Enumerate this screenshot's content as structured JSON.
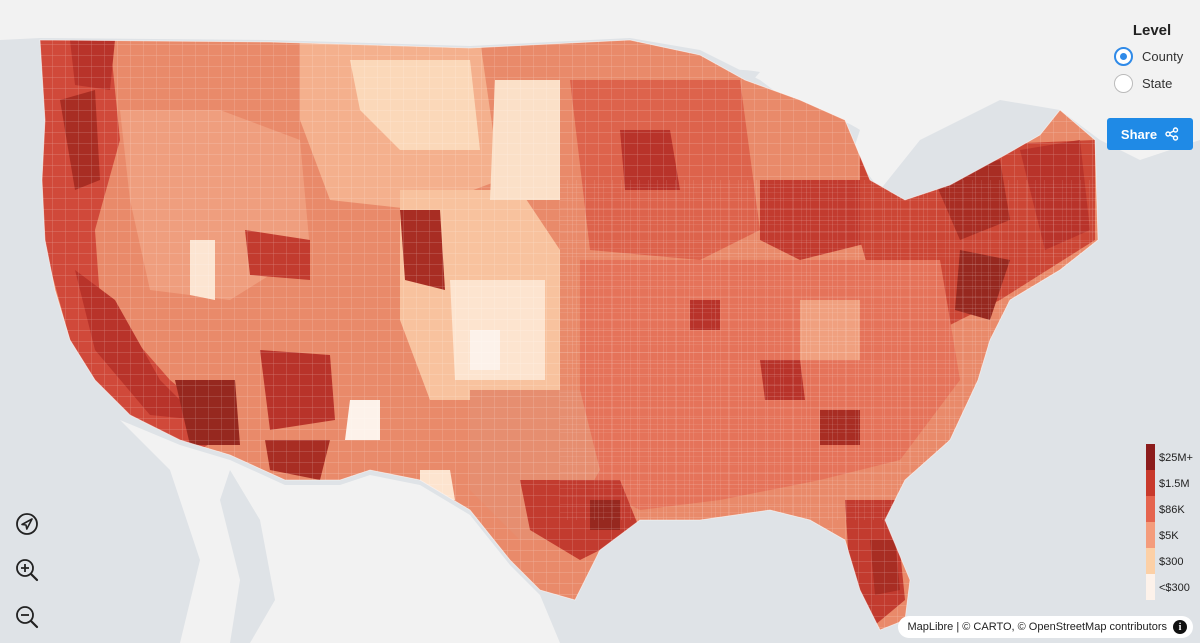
{
  "level_panel": {
    "title": "Level",
    "options": [
      {
        "label": "County",
        "selected": true
      },
      {
        "label": "State",
        "selected": false
      }
    ]
  },
  "share": {
    "label": "Share"
  },
  "legend": {
    "items": [
      {
        "label": "$25M+",
        "color": "#8c1c1c"
      },
      {
        "label": "$1.5M",
        "color": "#c8392b"
      },
      {
        "label": "$86K",
        "color": "#e5644e"
      },
      {
        "label": "$5K",
        "color": "#f49c7c"
      },
      {
        "label": "$300",
        "color": "#fcd0a6"
      },
      {
        "label": "<$300",
        "color": "#fdf2ea"
      }
    ]
  },
  "controls": {
    "locate": "locate-icon",
    "zoom_in": "zoom-in-icon",
    "zoom_out": "zoom-out-icon"
  },
  "attribution": {
    "text": "MapLibre | © CARTO, © OpenStreetMap contributors"
  },
  "colors": {
    "water": "#dfe3e7",
    "land": "#f2f2f2",
    "accent": "#1f8ae6"
  }
}
